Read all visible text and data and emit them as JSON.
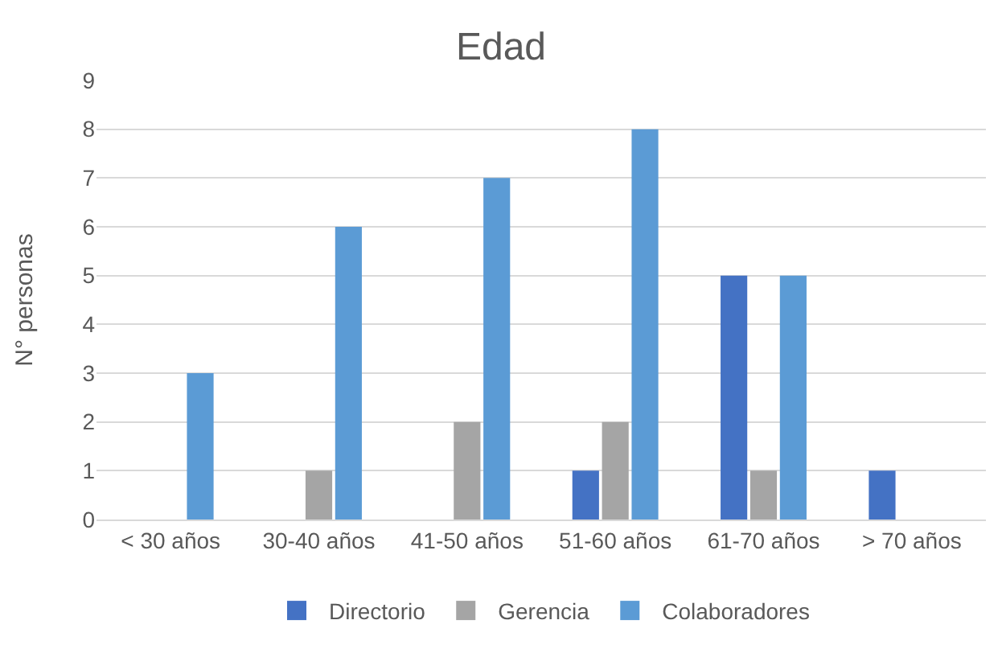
{
  "chart_data": {
    "type": "bar",
    "title": "Edad",
    "ylabel": "N° personas",
    "categories": [
      "< 30 años",
      "30-40 años",
      "41-50 años",
      "51-60 años",
      "61-70 años",
      "> 70 años"
    ],
    "series": [
      {
        "name": "Directorio",
        "color": "#4472c4",
        "values": [
          0,
          0,
          0,
          1,
          5,
          1
        ]
      },
      {
        "name": "Gerencia",
        "color": "#a5a5a5",
        "values": [
          0,
          1,
          2,
          2,
          1,
          0
        ]
      },
      {
        "name": "Colaboradores",
        "color": "#5b9bd5",
        "values": [
          3,
          6,
          7,
          8,
          5,
          0
        ]
      }
    ],
    "ylim": [
      0,
      9
    ],
    "yticks": [
      0,
      1,
      2,
      3,
      4,
      5,
      6,
      7,
      8,
      9
    ],
    "grid": "y",
    "legend": "bottom"
  }
}
